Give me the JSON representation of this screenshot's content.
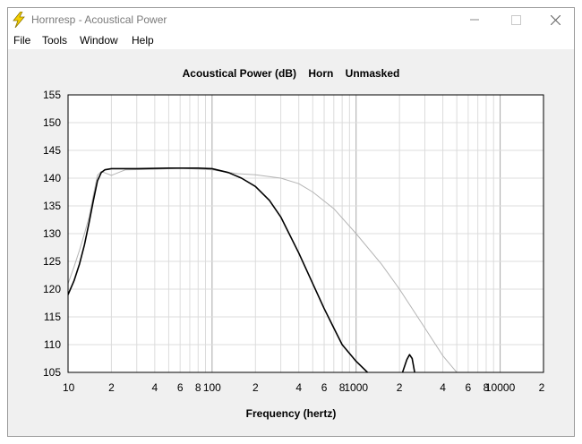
{
  "window": {
    "title": "Hornresp - Acoustical Power",
    "icon": "lightning-bolt-icon"
  },
  "menu": {
    "file": "File",
    "tools": "Tools",
    "window": "Window",
    "help": "Help"
  },
  "chart_data": {
    "type": "line",
    "title": "Acoustical Power (dB)    Horn    Unmasked",
    "xlabel": "Frequency (hertz)",
    "ylabel": "",
    "x_scale": "log",
    "xlim": [
      10,
      20000
    ],
    "ylim": [
      105,
      155
    ],
    "grid": true,
    "y_ticks": [
      105,
      110,
      115,
      120,
      125,
      130,
      135,
      140,
      145,
      150,
      155
    ],
    "x_tick_labels": [
      {
        "value": 10,
        "label": "10"
      },
      {
        "value": 20,
        "label": "2"
      },
      {
        "value": 40,
        "label": "4"
      },
      {
        "value": 60,
        "label": "6"
      },
      {
        "value": 80,
        "label": "8"
      },
      {
        "value": 100,
        "label": "100"
      },
      {
        "value": 200,
        "label": "2"
      },
      {
        "value": 400,
        "label": "4"
      },
      {
        "value": 600,
        "label": "6"
      },
      {
        "value": 800,
        "label": "8"
      },
      {
        "value": 1000,
        "label": "1000"
      },
      {
        "value": 2000,
        "label": "2"
      },
      {
        "value": 4000,
        "label": "4"
      },
      {
        "value": 6000,
        "label": "6"
      },
      {
        "value": 8000,
        "label": "8"
      },
      {
        "value": 10000,
        "label": "10000"
      },
      {
        "value": 20000,
        "label": "2"
      }
    ],
    "series": [
      {
        "color": "#000000",
        "points": [
          [
            10,
            119
          ],
          [
            11,
            121.5
          ],
          [
            12,
            124.5
          ],
          [
            13,
            128
          ],
          [
            14,
            132
          ],
          [
            15,
            136
          ],
          [
            16,
            139.5
          ],
          [
            17,
            141
          ],
          [
            18,
            141.5
          ],
          [
            20,
            141.7
          ],
          [
            30,
            141.7
          ],
          [
            50,
            141.8
          ],
          [
            80,
            141.8
          ],
          [
            100,
            141.7
          ],
          [
            130,
            141
          ],
          [
            160,
            140
          ],
          [
            200,
            138.5
          ],
          [
            250,
            136
          ],
          [
            300,
            133
          ],
          [
            400,
            126.5
          ],
          [
            500,
            121
          ],
          [
            600,
            116.5
          ],
          [
            700,
            113
          ],
          [
            800,
            110
          ],
          [
            1000,
            107
          ],
          [
            1200,
            105
          ]
        ]
      },
      {
        "color": "#000000",
        "points": [
          [
            2100,
            105
          ],
          [
            2250,
            107.3
          ],
          [
            2350,
            108.2
          ],
          [
            2450,
            107.5
          ],
          [
            2550,
            105
          ]
        ]
      },
      {
        "color": "#b4b4b4",
        "points": [
          [
            10,
            121
          ],
          [
            11,
            124
          ],
          [
            12,
            127
          ],
          [
            13,
            130
          ],
          [
            14,
            133
          ],
          [
            15,
            137
          ],
          [
            16,
            140.5
          ],
          [
            17,
            141.2
          ],
          [
            20,
            140.5
          ],
          [
            25,
            141.5
          ],
          [
            40,
            141.6
          ],
          [
            60,
            141.8
          ],
          [
            100,
            141.5
          ],
          [
            150,
            140.8
          ],
          [
            200,
            140.6
          ],
          [
            300,
            140
          ],
          [
            400,
            139
          ],
          [
            500,
            137.5
          ],
          [
            700,
            134.5
          ],
          [
            1000,
            130
          ],
          [
            1500,
            124.5
          ],
          [
            2000,
            120
          ],
          [
            3000,
            113
          ],
          [
            4000,
            108
          ],
          [
            5000,
            105
          ]
        ]
      }
    ]
  }
}
